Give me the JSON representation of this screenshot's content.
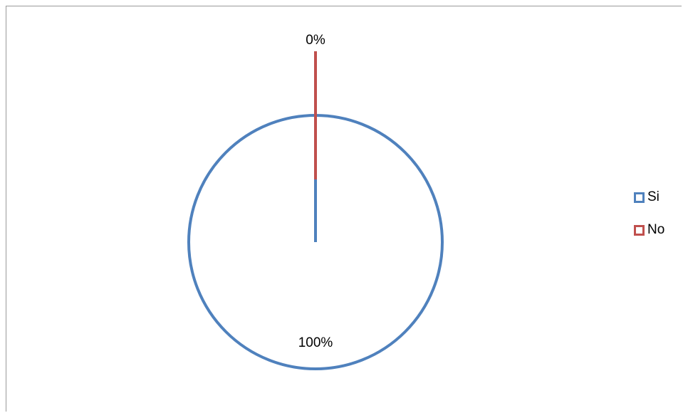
{
  "chart_data": {
    "type": "pie",
    "categories": [
      "Si",
      "No"
    ],
    "values": [
      100,
      0
    ],
    "data_labels": [
      "100%",
      "0%"
    ],
    "colors": [
      "#4f81bd",
      "#c0504d"
    ],
    "legend_position": "right",
    "title": ""
  }
}
